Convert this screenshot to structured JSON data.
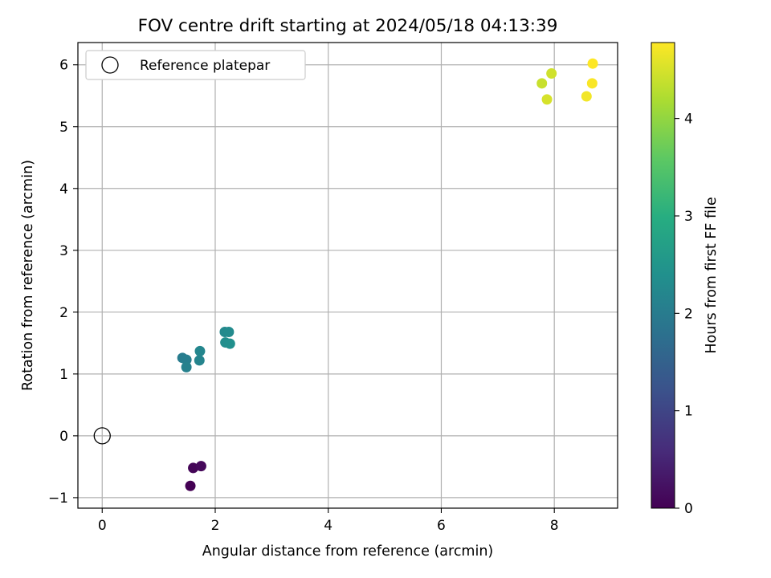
{
  "chart_data": {
    "type": "scatter",
    "title": "FOV centre drift starting at 2024/05/18 04:13:39",
    "xlabel": "Angular distance from reference (arcmin)",
    "ylabel": "Rotation from reference (arcmin)",
    "xlim": [
      -0.43,
      9.12
    ],
    "ylim": [
      -1.17,
      6.36
    ],
    "xticks": [
      0,
      2,
      4,
      6,
      8
    ],
    "yticks": [
      -1,
      0,
      1,
      2,
      3,
      4,
      5,
      6
    ],
    "grid": true,
    "legend": {
      "placement": "top-left",
      "entries": [
        "Reference platepar"
      ]
    },
    "reference_point": {
      "x": 0,
      "y": 0,
      "label": "Reference platepar"
    },
    "colorbar": {
      "label": "Hours from first FF file",
      "colormap": "viridis",
      "range": [
        0,
        4.78
      ],
      "ticks": [
        0,
        1,
        2,
        3,
        4
      ]
    },
    "points": [
      {
        "x": 1.56,
        "y": -0.81,
        "hours": 0.0
      },
      {
        "x": 1.61,
        "y": -0.52,
        "hours": 0.05
      },
      {
        "x": 1.75,
        "y": -0.49,
        "hours": 0.1
      },
      {
        "x": 1.42,
        "y": 1.26,
        "hours": 2.0
      },
      {
        "x": 1.49,
        "y": 1.23,
        "hours": 2.05
      },
      {
        "x": 1.49,
        "y": 1.11,
        "hours": 2.1
      },
      {
        "x": 1.72,
        "y": 1.22,
        "hours": 2.15
      },
      {
        "x": 1.73,
        "y": 1.37,
        "hours": 2.2
      },
      {
        "x": 2.17,
        "y": 1.68,
        "hours": 2.25
      },
      {
        "x": 2.24,
        "y": 1.68,
        "hours": 2.3
      },
      {
        "x": 2.18,
        "y": 1.51,
        "hours": 2.35
      },
      {
        "x": 2.26,
        "y": 1.49,
        "hours": 2.4
      },
      {
        "x": 7.78,
        "y": 5.7,
        "hours": 4.4
      },
      {
        "x": 7.95,
        "y": 5.86,
        "hours": 4.45
      },
      {
        "x": 7.87,
        "y": 5.44,
        "hours": 4.5
      },
      {
        "x": 8.57,
        "y": 5.49,
        "hours": 4.7
      },
      {
        "x": 8.67,
        "y": 5.7,
        "hours": 4.75
      },
      {
        "x": 8.68,
        "y": 6.02,
        "hours": 4.78
      }
    ]
  }
}
